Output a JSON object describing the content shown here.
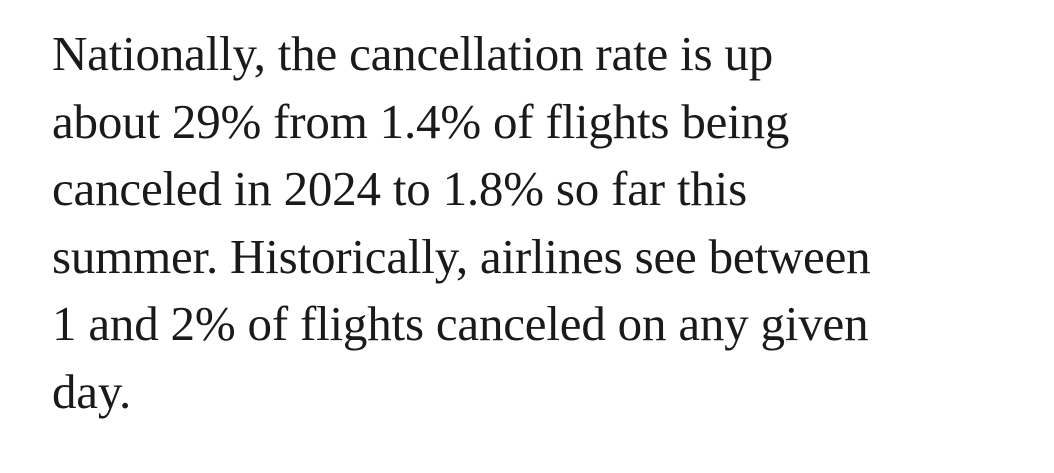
{
  "article": {
    "paragraph_lines": [
      "Nationally, the cancellation rate is up",
      "about 29% from 1.4% of flights being",
      "canceled in 2024 to 1.8% so far this",
      "summer. Historically, airlines see between",
      "1 and 2% of flights canceled on any given",
      "day."
    ]
  }
}
